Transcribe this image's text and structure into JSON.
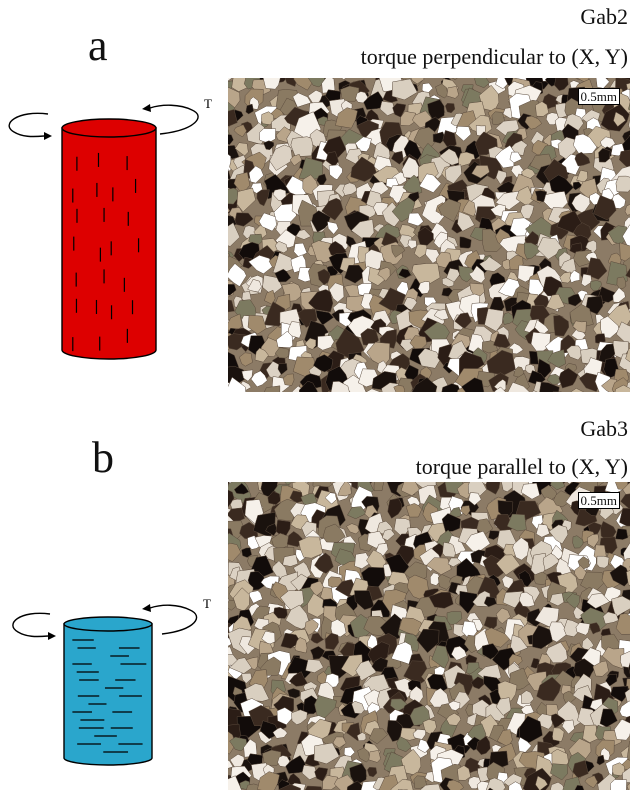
{
  "panels": [
    {
      "letter": "a",
      "sample": "Gab2",
      "orientation": "torque perpendicular to (X, Y)",
      "torque_label": "T",
      "scale_bar": "0.5mm",
      "cylinder_color": "#dd0000",
      "marks": "vertical"
    },
    {
      "letter": "b",
      "sample": "Gab3",
      "orientation": "torque parallel to (X, Y)",
      "torque_label": "T",
      "scale_bar": "0.5mm",
      "cylinder_color": "#2aa6cc",
      "marks": "horizontal"
    }
  ]
}
